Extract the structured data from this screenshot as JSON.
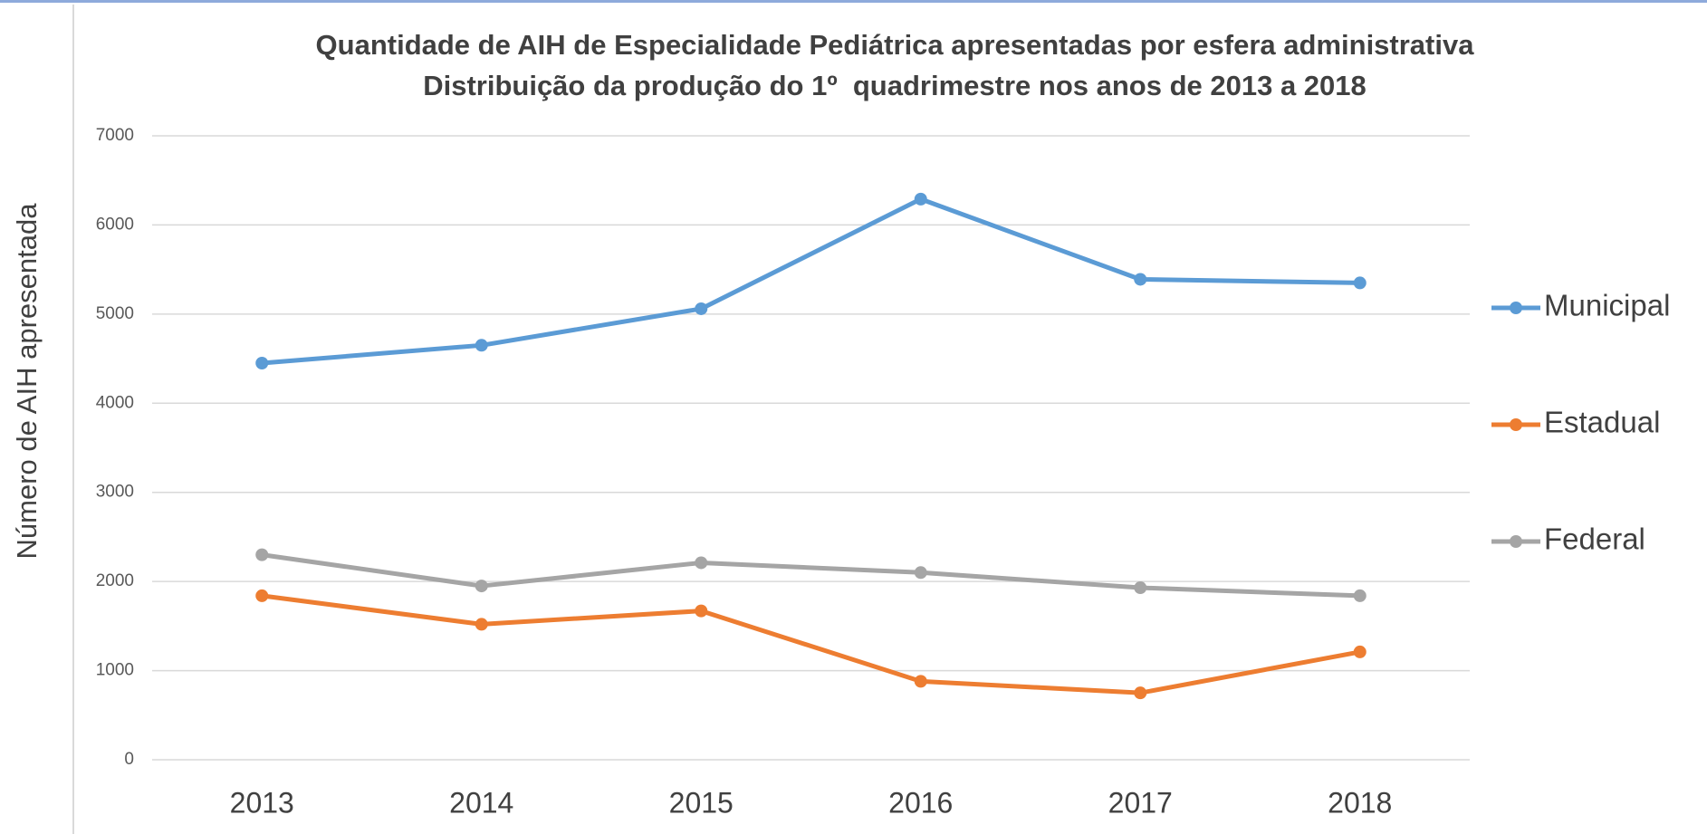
{
  "chart_data": {
    "type": "line",
    "title": "Quantidade de AIH de Especialidade Pediátrica apresentadas por esfera administrativa",
    "subtitle": "Distribuição da produção do 1º  quadrimestre nos anos de 2013 a 2018",
    "y_label": "Número de AIH apresentada",
    "categories": [
      "2013",
      "2014",
      "2015",
      "2016",
      "2017",
      "2018"
    ],
    "series": [
      {
        "name": "Municipal",
        "color": "#5b9bd5",
        "values": [
          4450,
          4650,
          5060,
          6290,
          5390,
          5350
        ]
      },
      {
        "name": "Estadual",
        "color": "#ed7d31",
        "values": [
          1840,
          1520,
          1670,
          880,
          750,
          1210
        ]
      },
      {
        "name": "Federal",
        "color": "#a5a5a5",
        "values": [
          2300,
          1950,
          2210,
          2100,
          1930,
          1840
        ]
      }
    ],
    "ylim": [
      0,
      7000
    ],
    "yticks": [
      0,
      1000,
      2000,
      3000,
      4000,
      5000,
      6000,
      7000
    ],
    "grid": true,
    "legend": "right"
  }
}
